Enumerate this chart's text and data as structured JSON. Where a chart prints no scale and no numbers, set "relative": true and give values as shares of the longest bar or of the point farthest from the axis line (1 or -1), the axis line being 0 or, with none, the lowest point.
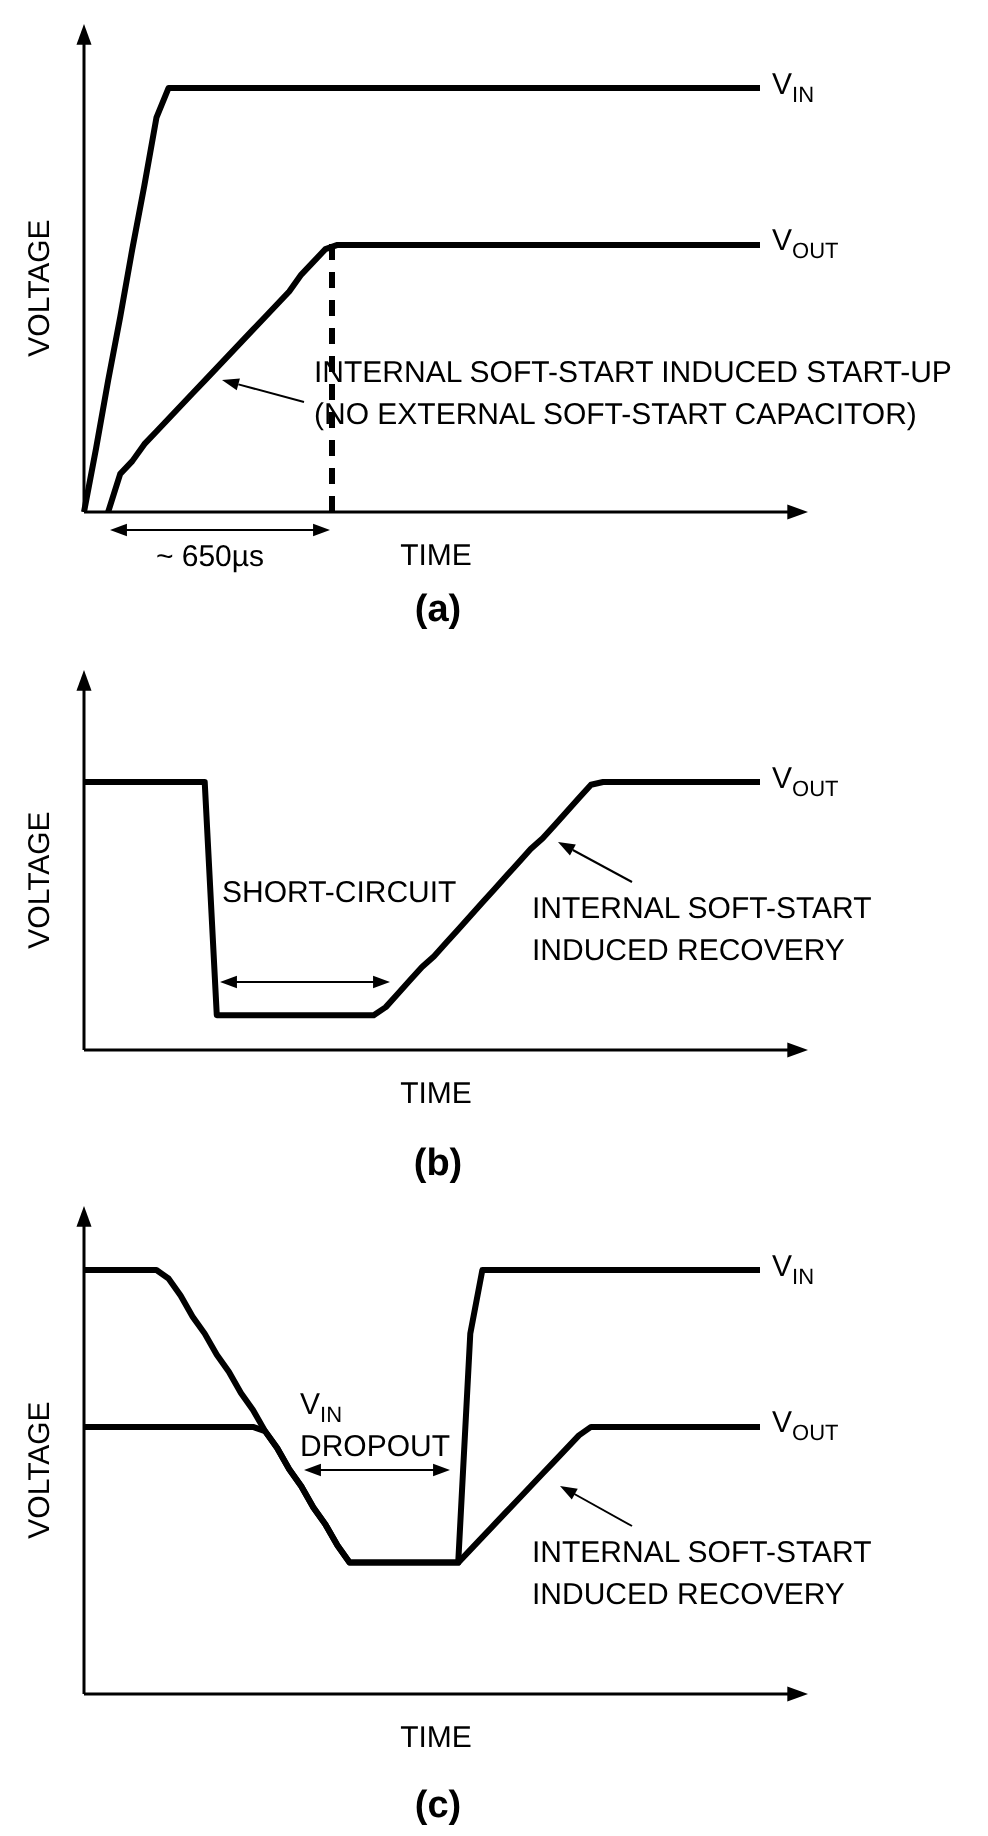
{
  "chart_data": [
    {
      "type": "line",
      "title": "(a)",
      "xlabel": "TIME",
      "ylabel": "VOLTAGE",
      "relative": true,
      "marker": "none",
      "categories": [
        null,
        null,
        null,
        null,
        null,
        null,
        null,
        null,
        null,
        null,
        null,
        null,
        null,
        null,
        null,
        null,
        null,
        null,
        null,
        null,
        null,
        null,
        null,
        null,
        null,
        null,
        null,
        null,
        null,
        null,
        null,
        null,
        null,
        null,
        null,
        null,
        null,
        null,
        null,
        null,
        null,
        null,
        null,
        null,
        null,
        null,
        null,
        null,
        null,
        null,
        null,
        null,
        null,
        null,
        null,
        null,
        null
      ],
      "series": [
        {
          "name": "V$_{IN}$",
          "color": "#000000",
          "values": [
            0,
            0.15,
            0.31,
            0.46,
            0.62,
            0.77,
            0.93,
            1,
            1,
            1,
            1,
            1,
            1,
            1,
            1,
            1,
            1,
            1,
            1,
            1,
            1,
            1,
            1,
            1,
            1,
            1,
            1,
            1,
            1,
            1,
            1,
            1,
            1,
            1,
            1,
            1,
            1,
            1,
            1,
            1,
            1,
            1,
            1,
            1,
            1,
            1,
            1,
            1,
            1,
            1,
            1,
            1,
            1,
            1,
            1,
            1,
            1
          ]
        },
        {
          "name": "V$_{OUT}$",
          "color": "#000000",
          "values": [
            null,
            null,
            0,
            0.09,
            0.12,
            0.16,
            0.19,
            0.22,
            0.25,
            0.28,
            0.31,
            0.34,
            0.37,
            0.4,
            0.43,
            0.46,
            0.49,
            0.52,
            0.56,
            0.59,
            0.62,
            0.63,
            0.63,
            0.63,
            0.63,
            0.63,
            0.63,
            0.63,
            0.63,
            0.63,
            0.63,
            0.63,
            0.63,
            0.63,
            0.63,
            0.63,
            0.63,
            0.63,
            0.63,
            0.63,
            0.63,
            0.63,
            0.63,
            0.63,
            0.63,
            0.63,
            0.63,
            0.63,
            0.63,
            0.63,
            0.63,
            0.63,
            0.63,
            0.63,
            0.63,
            0.63,
            0.63
          ]
        }
      ],
      "annotations": [
        "INTERNAL SOFT-START INDUCED START-UP\n(NO EXTERNAL SOFT-START CAPACITOR)",
        "~ 650µs"
      ]
    },
    {
      "type": "line",
      "title": "(b)",
      "xlabel": "TIME",
      "ylabel": "VOLTAGE",
      "relative": true,
      "marker": "none",
      "categories": [
        null,
        null,
        null,
        null,
        null,
        null,
        null,
        null,
        null,
        null,
        null,
        null,
        null,
        null,
        null,
        null,
        null,
        null,
        null,
        null,
        null,
        null,
        null,
        null,
        null,
        null,
        null,
        null,
        null,
        null,
        null,
        null,
        null,
        null,
        null,
        null,
        null,
        null,
        null,
        null,
        null,
        null,
        null,
        null,
        null,
        null,
        null,
        null,
        null,
        null,
        null,
        null,
        null,
        null,
        null,
        null,
        null
      ],
      "series": [
        {
          "name": "V$_{OUT}$",
          "color": "#000000",
          "values": [
            1,
            1,
            1,
            1,
            1,
            1,
            1,
            1,
            1,
            1,
            1,
            0.13,
            0.13,
            0.13,
            0.13,
            0.13,
            0.13,
            0.13,
            0.13,
            0.13,
            0.13,
            0.13,
            0.13,
            0.13,
            0.13,
            0.16,
            0.21,
            0.26,
            0.31,
            0.35,
            0.4,
            0.45,
            0.5,
            0.55,
            0.6,
            0.65,
            0.7,
            0.75,
            0.79,
            0.84,
            0.89,
            0.94,
            0.99,
            1,
            1,
            1,
            1,
            1,
            1,
            1,
            1,
            1,
            1,
            1,
            1,
            1,
            1
          ]
        }
      ],
      "annotations": [
        "SHORT-CIRCUIT",
        "INTERNAL SOFT-START\nINDUCED RECOVERY"
      ]
    },
    {
      "type": "line",
      "title": "(c)",
      "xlabel": "TIME",
      "ylabel": "VOLTAGE",
      "relative": true,
      "marker": "none",
      "categories": [
        null,
        null,
        null,
        null,
        null,
        null,
        null,
        null,
        null,
        null,
        null,
        null,
        null,
        null,
        null,
        null,
        null,
        null,
        null,
        null,
        null,
        null,
        null,
        null,
        null,
        null,
        null,
        null,
        null,
        null,
        null,
        null,
        null,
        null,
        null,
        null,
        null,
        null,
        null,
        null,
        null,
        null,
        null,
        null,
        null,
        null,
        null,
        null,
        null,
        null,
        null,
        null,
        null,
        null,
        null,
        null,
        null
      ],
      "series": [
        {
          "name": "V$_{IN}$",
          "color": "#000000",
          "values": [
            1,
            1,
            1,
            1,
            1,
            1,
            1,
            0.98,
            0.94,
            0.89,
            0.85,
            0.8,
            0.76,
            0.71,
            0.67,
            0.62,
            0.58,
            0.53,
            0.49,
            0.44,
            0.4,
            0.35,
            0.31,
            0.31,
            0.31,
            0.31,
            0.31,
            0.31,
            0.31,
            0.31,
            0.31,
            0.31,
            0.85,
            1,
            1,
            1,
            1,
            1,
            1,
            1,
            1,
            1,
            1,
            1,
            1,
            1,
            1,
            1,
            1,
            1,
            1,
            1,
            1,
            1,
            1,
            1,
            1
          ]
        },
        {
          "name": "V$_{OUT}$",
          "color": "#000000",
          "values": [
            0.63,
            0.63,
            0.63,
            0.63,
            0.63,
            0.63,
            0.63,
            0.63,
            0.63,
            0.63,
            0.63,
            0.63,
            0.63,
            0.63,
            0.63,
            0.62,
            0.58,
            0.53,
            0.49,
            0.44,
            0.4,
            0.35,
            0.31,
            0.31,
            0.31,
            0.31,
            0.31,
            0.31,
            0.31,
            0.31,
            0.31,
            0.31,
            0.34,
            0.37,
            0.4,
            0.43,
            0.46,
            0.49,
            0.52,
            0.55,
            0.58,
            0.61,
            0.63,
            0.63,
            0.63,
            0.63,
            0.63,
            0.63,
            0.63,
            0.63,
            0.63,
            0.63,
            0.63,
            0.63,
            0.63,
            0.63,
            0.63
          ]
        }
      ],
      "annotations": [
        "V$_{IN}$\nDROPOUT",
        "INTERNAL SOFT-START\nINDUCED RECOVERY"
      ]
    }
  ]
}
